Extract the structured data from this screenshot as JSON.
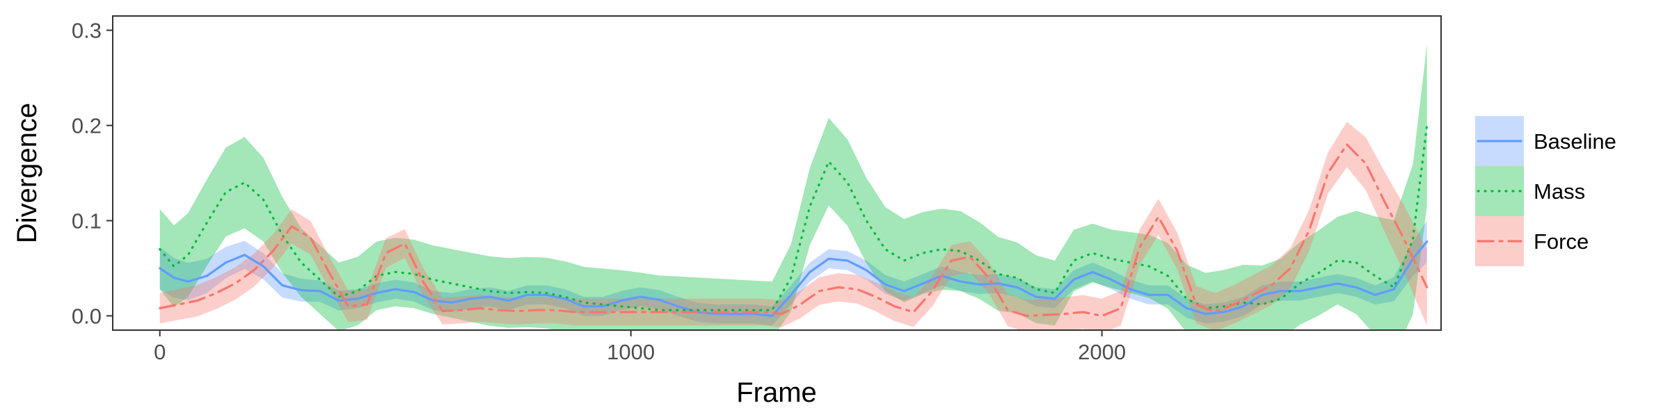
{
  "chart_data": {
    "type": "line",
    "title": "",
    "xlabel": "Frame",
    "ylabel": "Divergence",
    "xlim": [
      -100,
      2720
    ],
    "ylim": [
      -0.015,
      0.315
    ],
    "x_ticks": [
      0,
      1000,
      2000
    ],
    "x_tick_labels": [
      "0",
      "1000",
      "2000"
    ],
    "y_ticks": [
      0.0,
      0.1,
      0.2,
      0.3
    ],
    "y_tick_labels": [
      "0.0",
      "0.1",
      "0.2",
      "0.3"
    ],
    "grid": false,
    "legend_position": "right",
    "series": [
      {
        "name": "Baseline",
        "color": "#619CFF",
        "line_style": "solid",
        "points": [
          [
            0,
            0.05
          ],
          [
            30,
            0.04
          ],
          [
            60,
            0.036
          ],
          [
            100,
            0.042
          ],
          [
            140,
            0.056
          ],
          [
            180,
            0.064
          ],
          [
            220,
            0.052
          ],
          [
            260,
            0.032
          ],
          [
            300,
            0.027
          ],
          [
            340,
            0.026
          ],
          [
            380,
            0.016
          ],
          [
            420,
            0.018
          ],
          [
            460,
            0.024
          ],
          [
            500,
            0.028
          ],
          [
            540,
            0.025
          ],
          [
            580,
            0.016
          ],
          [
            620,
            0.014
          ],
          [
            660,
            0.018
          ],
          [
            700,
            0.02
          ],
          [
            740,
            0.016
          ],
          [
            780,
            0.022
          ],
          [
            820,
            0.022
          ],
          [
            860,
            0.018
          ],
          [
            900,
            0.01
          ],
          [
            940,
            0.01
          ],
          [
            980,
            0.016
          ],
          [
            1020,
            0.02
          ],
          [
            1060,
            0.017
          ],
          [
            1100,
            0.01
          ],
          [
            1140,
            0.004
          ],
          [
            1180,
            0.002
          ],
          [
            1220,
            0.002
          ],
          [
            1260,
            0.002
          ],
          [
            1300,
            0.0
          ],
          [
            1340,
            0.022
          ],
          [
            1380,
            0.046
          ],
          [
            1420,
            0.06
          ],
          [
            1460,
            0.058
          ],
          [
            1500,
            0.048
          ],
          [
            1540,
            0.033
          ],
          [
            1580,
            0.026
          ],
          [
            1620,
            0.034
          ],
          [
            1660,
            0.042
          ],
          [
            1700,
            0.036
          ],
          [
            1740,
            0.033
          ],
          [
            1780,
            0.034
          ],
          [
            1820,
            0.03
          ],
          [
            1860,
            0.02
          ],
          [
            1900,
            0.018
          ],
          [
            1940,
            0.038
          ],
          [
            1980,
            0.046
          ],
          [
            2020,
            0.038
          ],
          [
            2060,
            0.028
          ],
          [
            2100,
            0.022
          ],
          [
            2140,
            0.022
          ],
          [
            2180,
            0.008
          ],
          [
            2220,
            0.002
          ],
          [
            2260,
            0.004
          ],
          [
            2300,
            0.01
          ],
          [
            2340,
            0.022
          ],
          [
            2380,
            0.026
          ],
          [
            2420,
            0.026
          ],
          [
            2460,
            0.03
          ],
          [
            2500,
            0.034
          ],
          [
            2540,
            0.03
          ],
          [
            2580,
            0.022
          ],
          [
            2620,
            0.028
          ],
          [
            2660,
            0.06
          ],
          [
            2690,
            0.078
          ]
        ],
        "band_halfwidth": [
          [
            0,
            0.022
          ],
          [
            200,
            0.014
          ],
          [
            400,
            0.01
          ],
          [
            1300,
            0.01
          ],
          [
            1450,
            0.01
          ],
          [
            2000,
            0.01
          ],
          [
            2600,
            0.01
          ],
          [
            2690,
            0.022
          ]
        ]
      },
      {
        "name": "Mass",
        "color": "#00BA38",
        "line_style": "dotted",
        "points": [
          [
            0,
            0.07
          ],
          [
            30,
            0.052
          ],
          [
            60,
            0.064
          ],
          [
            100,
            0.098
          ],
          [
            140,
            0.13
          ],
          [
            180,
            0.14
          ],
          [
            220,
            0.122
          ],
          [
            260,
            0.085
          ],
          [
            300,
            0.056
          ],
          [
            340,
            0.038
          ],
          [
            380,
            0.02
          ],
          [
            420,
            0.026
          ],
          [
            460,
            0.042
          ],
          [
            500,
            0.046
          ],
          [
            540,
            0.044
          ],
          [
            580,
            0.038
          ],
          [
            620,
            0.034
          ],
          [
            660,
            0.03
          ],
          [
            700,
            0.026
          ],
          [
            740,
            0.024
          ],
          [
            780,
            0.025
          ],
          [
            820,
            0.024
          ],
          [
            860,
            0.02
          ],
          [
            900,
            0.014
          ],
          [
            940,
            0.012
          ],
          [
            980,
            0.01
          ],
          [
            1020,
            0.008
          ],
          [
            1060,
            0.006
          ],
          [
            1100,
            0.006
          ],
          [
            1140,
            0.006
          ],
          [
            1180,
            0.006
          ],
          [
            1220,
            0.006
          ],
          [
            1260,
            0.006
          ],
          [
            1300,
            0.006
          ],
          [
            1340,
            0.04
          ],
          [
            1380,
            0.115
          ],
          [
            1420,
            0.162
          ],
          [
            1460,
            0.14
          ],
          [
            1500,
            0.1
          ],
          [
            1540,
            0.07
          ],
          [
            1580,
            0.058
          ],
          [
            1620,
            0.066
          ],
          [
            1660,
            0.07
          ],
          [
            1700,
            0.068
          ],
          [
            1740,
            0.058
          ],
          [
            1780,
            0.044
          ],
          [
            1820,
            0.04
          ],
          [
            1860,
            0.028
          ],
          [
            1900,
            0.024
          ],
          [
            1940,
            0.058
          ],
          [
            1980,
            0.066
          ],
          [
            2020,
            0.06
          ],
          [
            2060,
            0.056
          ],
          [
            2100,
            0.052
          ],
          [
            2140,
            0.042
          ],
          [
            2180,
            0.018
          ],
          [
            2220,
            0.008
          ],
          [
            2260,
            0.01
          ],
          [
            2300,
            0.014
          ],
          [
            2340,
            0.012
          ],
          [
            2380,
            0.018
          ],
          [
            2420,
            0.034
          ],
          [
            2460,
            0.045
          ],
          [
            2500,
            0.058
          ],
          [
            2540,
            0.056
          ],
          [
            2580,
            0.042
          ],
          [
            2620,
            0.03
          ],
          [
            2660,
            0.08
          ],
          [
            2690,
            0.2
          ]
        ],
        "band_halfwidth": [
          [
            0,
            0.042
          ],
          [
            180,
            0.048
          ],
          [
            300,
            0.036
          ],
          [
            600,
            0.036
          ],
          [
            1000,
            0.038
          ],
          [
            1300,
            0.03
          ],
          [
            1420,
            0.046
          ],
          [
            1700,
            0.042
          ],
          [
            2000,
            0.03
          ],
          [
            2500,
            0.046
          ],
          [
            2690,
            0.085
          ]
        ]
      },
      {
        "name": "Force",
        "color": "#F8766D",
        "line_style": "dashdot",
        "points": [
          [
            0,
            0.008
          ],
          [
            40,
            0.012
          ],
          [
            80,
            0.016
          ],
          [
            120,
            0.024
          ],
          [
            160,
            0.034
          ],
          [
            200,
            0.048
          ],
          [
            240,
            0.068
          ],
          [
            280,
            0.094
          ],
          [
            320,
            0.082
          ],
          [
            360,
            0.045
          ],
          [
            400,
            0.01
          ],
          [
            440,
            0.012
          ],
          [
            480,
            0.066
          ],
          [
            520,
            0.076
          ],
          [
            560,
            0.035
          ],
          [
            600,
            0.005
          ],
          [
            640,
            0.006
          ],
          [
            680,
            0.008
          ],
          [
            720,
            0.006
          ],
          [
            760,
            0.005
          ],
          [
            800,
            0.006
          ],
          [
            840,
            0.006
          ],
          [
            880,
            0.004
          ],
          [
            920,
            0.004
          ],
          [
            960,
            0.004
          ],
          [
            1000,
            0.004
          ],
          [
            1040,
            0.004
          ],
          [
            1080,
            0.004
          ],
          [
            1120,
            0.004
          ],
          [
            1160,
            0.004
          ],
          [
            1200,
            0.004
          ],
          [
            1240,
            0.004
          ],
          [
            1280,
            0.004
          ],
          [
            1320,
            0.002
          ],
          [
            1360,
            0.012
          ],
          [
            1400,
            0.026
          ],
          [
            1440,
            0.03
          ],
          [
            1480,
            0.028
          ],
          [
            1520,
            0.02
          ],
          [
            1560,
            0.01
          ],
          [
            1600,
            0.004
          ],
          [
            1640,
            0.026
          ],
          [
            1680,
            0.058
          ],
          [
            1720,
            0.062
          ],
          [
            1760,
            0.04
          ],
          [
            1800,
            0.006
          ],
          [
            1840,
            0.0
          ],
          [
            1880,
            0.001
          ],
          [
            1920,
            0.002
          ],
          [
            1960,
            0.004
          ],
          [
            2000,
            0.0
          ],
          [
            2040,
            0.008
          ],
          [
            2080,
            0.072
          ],
          [
            2120,
            0.104
          ],
          [
            2160,
            0.068
          ],
          [
            2200,
            0.012
          ],
          [
            2240,
            0.004
          ],
          [
            2280,
            0.012
          ],
          [
            2320,
            0.022
          ],
          [
            2360,
            0.032
          ],
          [
            2400,
            0.05
          ],
          [
            2440,
            0.09
          ],
          [
            2480,
            0.15
          ],
          [
            2520,
            0.18
          ],
          [
            2560,
            0.16
          ],
          [
            2600,
            0.12
          ],
          [
            2640,
            0.082
          ],
          [
            2690,
            0.03
          ]
        ],
        "band_halfwidth": [
          [
            0,
            0.016
          ],
          [
            300,
            0.018
          ],
          [
            600,
            0.014
          ],
          [
            1300,
            0.014
          ],
          [
            2000,
            0.018
          ],
          [
            2500,
            0.022
          ],
          [
            2690,
            0.04
          ]
        ]
      }
    ]
  }
}
